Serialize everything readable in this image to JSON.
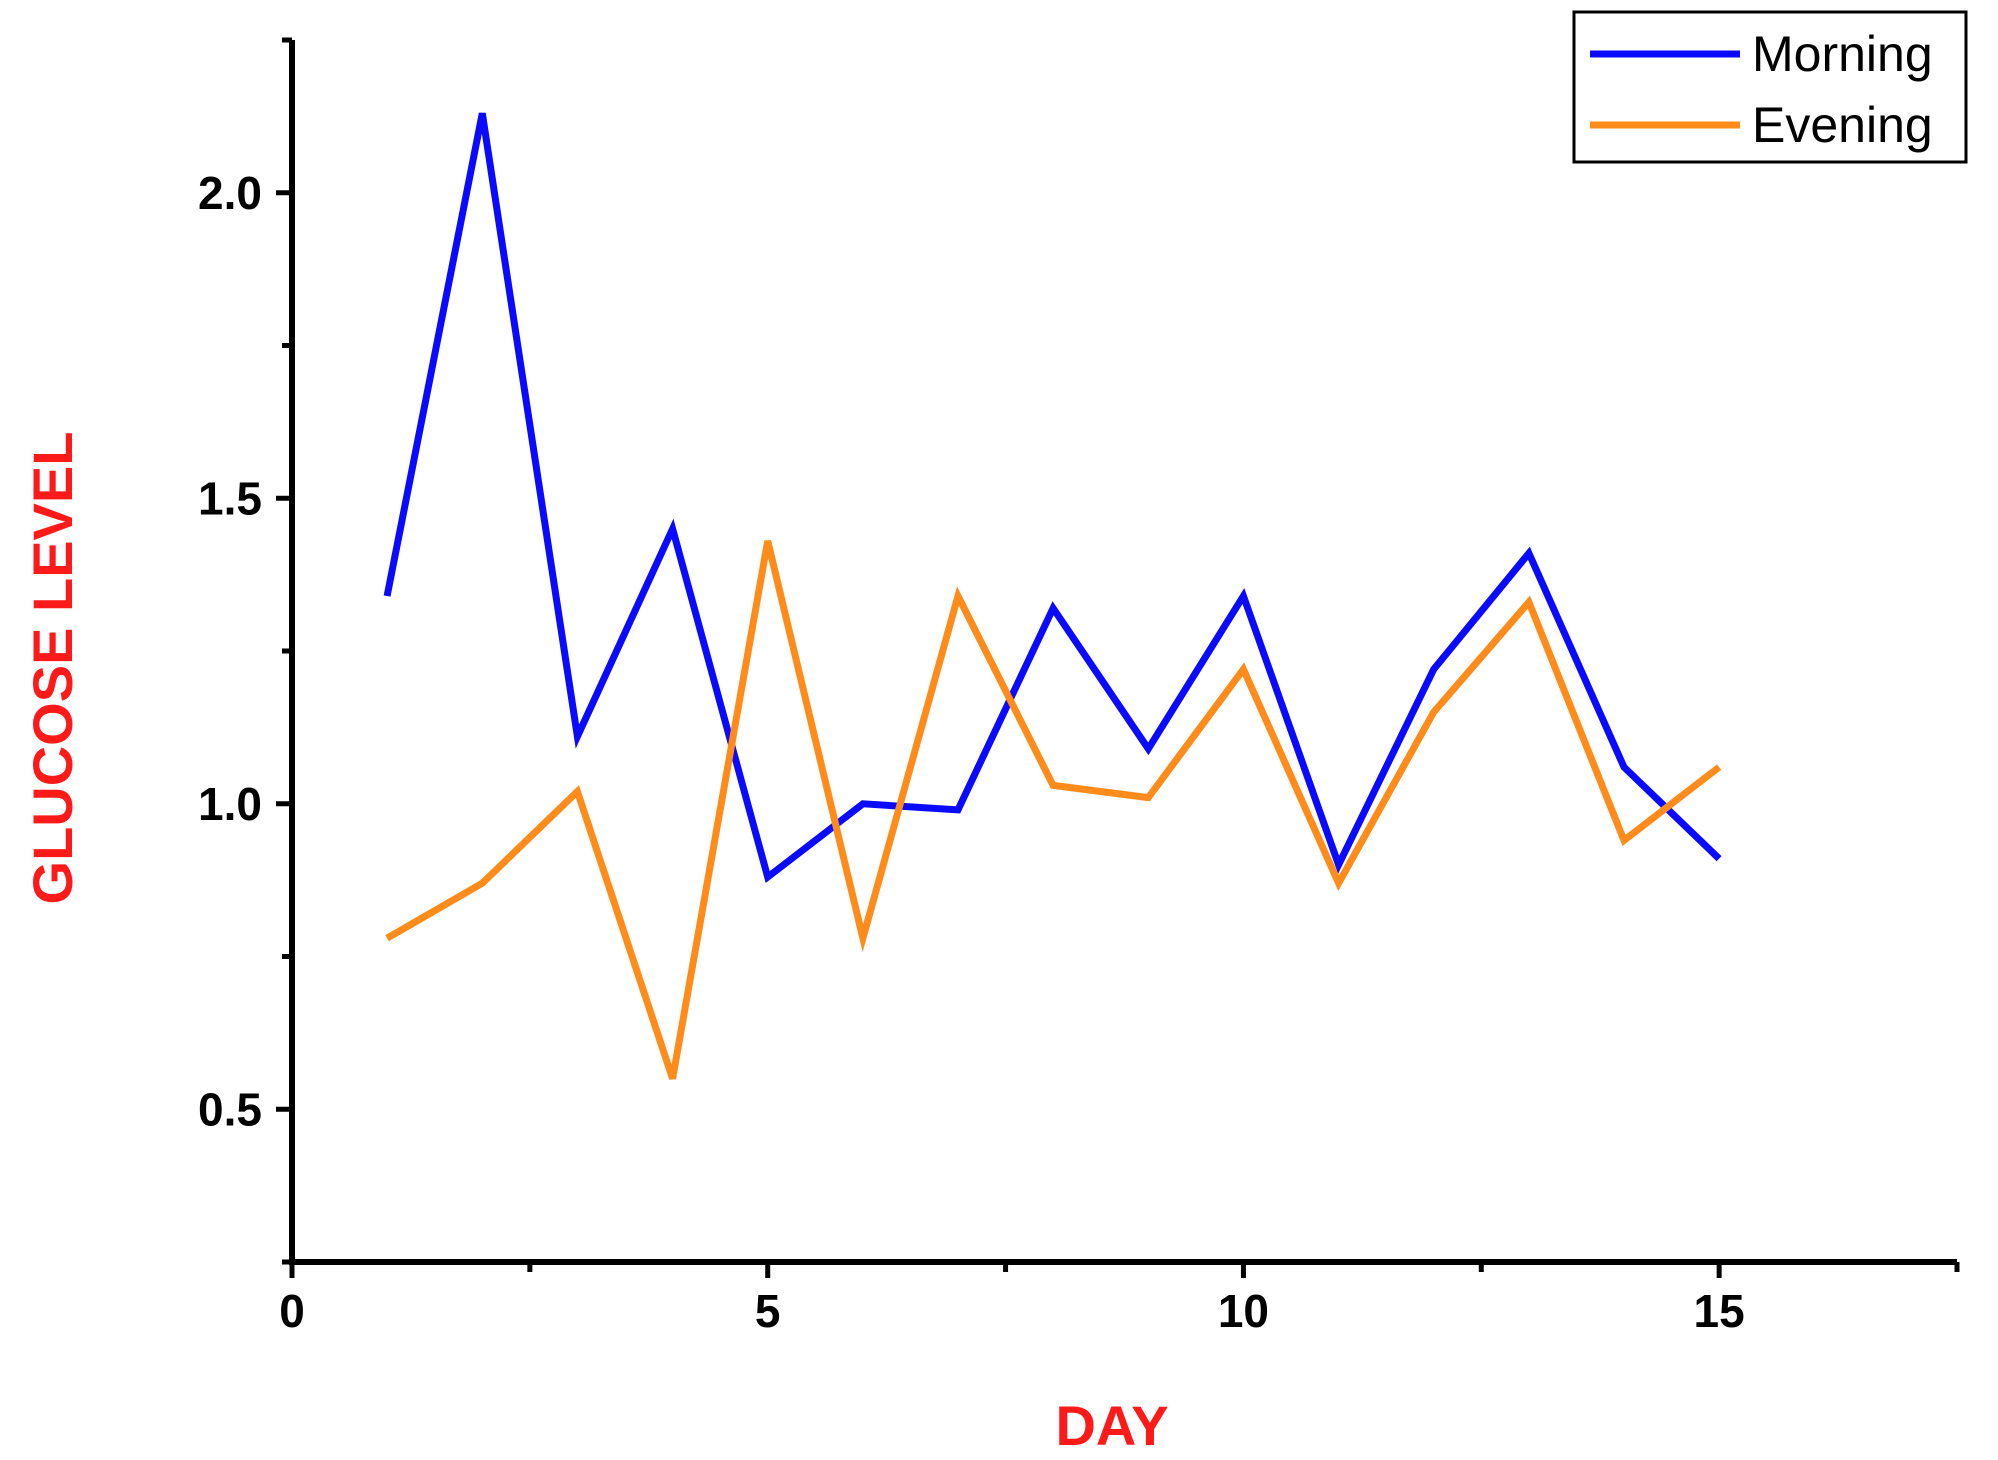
{
  "chart_data": {
    "type": "line",
    "title": "",
    "xlabel": "DAY",
    "ylabel": "GLUCOSE LEVEL",
    "xlim": [
      0,
      17.5
    ],
    "ylim": [
      0.25,
      2.25
    ],
    "x_ticks": [
      0,
      5,
      10,
      15
    ],
    "x_tick_labels": [
      "0",
      "5",
      "10",
      "15"
    ],
    "y_ticks": [
      0.5,
      1.0,
      1.5,
      2.0
    ],
    "y_tick_labels": [
      "0.5",
      "1.0",
      "1.5",
      "2.0"
    ],
    "grid": false,
    "legend_position": "top-right",
    "axis_title_color": "#ff1a1a",
    "x": [
      1,
      2,
      3,
      4,
      5,
      6,
      7,
      8,
      9,
      10,
      11,
      12,
      13,
      14,
      15
    ],
    "series": [
      {
        "name": "Morning",
        "color": "#0a0aff",
        "values": [
          1.34,
          2.13,
          1.11,
          1.45,
          0.88,
          1.0,
          0.99,
          1.32,
          1.09,
          1.34,
          0.9,
          1.22,
          1.41,
          1.06,
          0.91
        ]
      },
      {
        "name": "Evening",
        "color": "#ff8c1a",
        "values": [
          0.78,
          0.87,
          1.02,
          0.55,
          1.43,
          0.78,
          1.34,
          1.03,
          1.01,
          1.22,
          0.87,
          1.15,
          1.33,
          0.94,
          1.06
        ]
      }
    ]
  }
}
